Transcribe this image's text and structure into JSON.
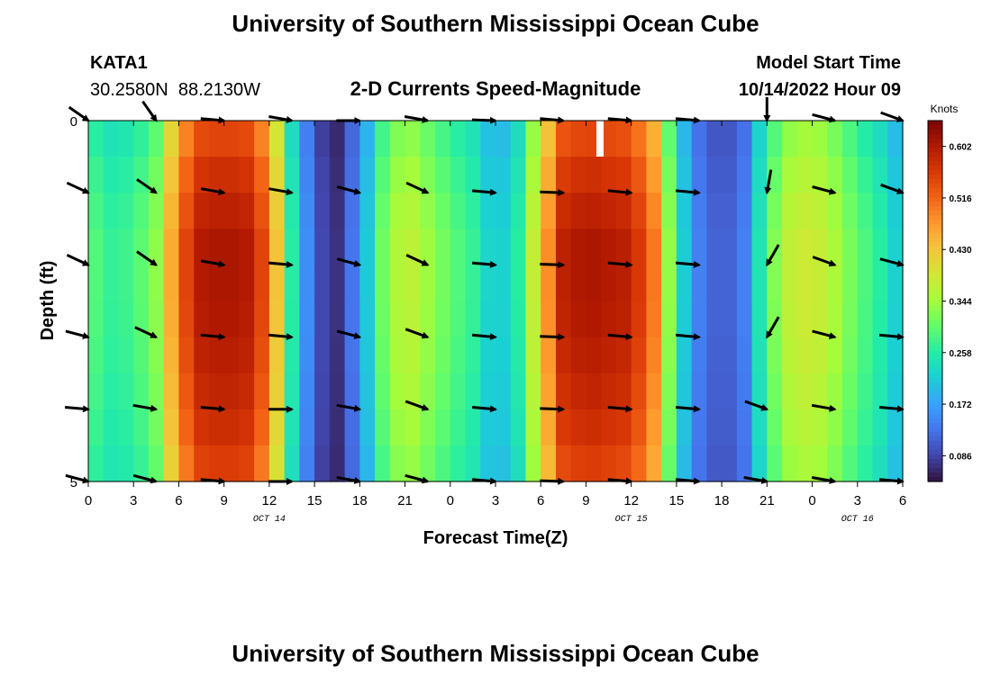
{
  "page": {
    "title": "University of Southern Mississippi Ocean Cube",
    "station_id": "KATA1",
    "coordinates": "30.2580N  88.2130W",
    "subtitle": "2-D Currents Speed-Magnitude",
    "model_start_label": "Model Start Time",
    "model_start_value": "10/14/2022 Hour 09",
    "footer_title": "University of Southern Mississippi Ocean Cube"
  },
  "chart_data": {
    "type": "heatmap",
    "title": "2-D Currents Speed-Magnitude",
    "xlabel": "Forecast Time(Z)",
    "ylabel": "Depth (ft)",
    "x_range_hours": [
      0,
      54
    ],
    "y_range_ft": [
      0,
      5
    ],
    "x_ticks": [
      "0",
      "3",
      "6",
      "9",
      "12",
      "15",
      "18",
      "21",
      "0",
      "3",
      "6",
      "9",
      "12",
      "15",
      "18",
      "21",
      "0",
      "3",
      "6"
    ],
    "y_ticks": [
      "0",
      "5"
    ],
    "date_labels": [
      {
        "hour": 12,
        "label": "OCT 14"
      },
      {
        "hour": 36,
        "label": "OCT 15"
      },
      {
        "hour": 51,
        "label": "OCT 16"
      }
    ],
    "colorbar": {
      "label": "Knots",
      "min": 0.043,
      "max": 0.645,
      "ticks": [
        "0.602",
        "0.516",
        "0.430",
        "0.344",
        "0.258",
        "0.172",
        "0.086"
      ],
      "tick_values": [
        0.602,
        0.516,
        0.43,
        0.344,
        0.258,
        0.172,
        0.086
      ],
      "colors": [
        "#30123b",
        "#4145ab",
        "#4675ed",
        "#39a2fc",
        "#1bcfd4",
        "#24eca6",
        "#61fc6c",
        "#a4fc3b",
        "#d1e834",
        "#f3c63a",
        "#fe9b2d",
        "#f36315",
        "#d93806",
        "#b11901",
        "#7a0403"
      ]
    },
    "speed_profile": {
      "hours": [
        0,
        1.5,
        3,
        4.5,
        6,
        7.5,
        9,
        10.5,
        12,
        13.5,
        15,
        16.5,
        18,
        19.5,
        21,
        22.5,
        24,
        25.5,
        27,
        28.5,
        30,
        31.5,
        33,
        34.5,
        36,
        37.5,
        39,
        40.5,
        42,
        43.5,
        45,
        46.5,
        48,
        49.5,
        51,
        52.5,
        54
      ],
      "knots": [
        0.3,
        0.27,
        0.28,
        0.33,
        0.52,
        0.6,
        0.61,
        0.6,
        0.52,
        0.26,
        0.1,
        0.07,
        0.16,
        0.31,
        0.38,
        0.34,
        0.3,
        0.27,
        0.2,
        0.26,
        0.43,
        0.59,
        0.61,
        0.6,
        0.59,
        0.5,
        0.25,
        0.14,
        0.1,
        0.14,
        0.3,
        0.37,
        0.39,
        0.35,
        0.3,
        0.26,
        0.2
      ],
      "depth_factor": [
        0.88,
        0.95,
        1.0,
        1.0,
        0.98,
        0.95,
        0.9
      ]
    },
    "vectors": {
      "hours": [
        0,
        4.5,
        9,
        13.5,
        18,
        22.5,
        27,
        31.5,
        36,
        40.5,
        45,
        49.5,
        54
      ],
      "depths_ft": [
        0,
        1,
        2,
        3,
        4,
        5
      ],
      "direction_deg": [
        [
          -145,
          -125,
          -175,
          -170,
          -180,
          -170,
          -178,
          -175,
          -175,
          -175,
          -90,
          -165,
          -160
        ],
        [
          -155,
          -145,
          -170,
          -170,
          -165,
          -155,
          -175,
          -178,
          -175,
          -175,
          -80,
          -165,
          -160
        ],
        [
          -155,
          -145,
          -170,
          -175,
          -165,
          -155,
          -175,
          -178,
          -175,
          -175,
          -60,
          -160,
          -165
        ],
        [
          -165,
          -155,
          -175,
          -175,
          -165,
          -160,
          -175,
          -178,
          -175,
          -175,
          -60,
          -165,
          -175
        ],
        [
          -175,
          -170,
          -175,
          -180,
          -170,
          -160,
          -175,
          -178,
          -175,
          -175,
          -160,
          -170,
          -175
        ],
        [
          -165,
          -165,
          -175,
          -180,
          -170,
          -165,
          -175,
          -178,
          -175,
          -175,
          -170,
          -170,
          -175
        ]
      ]
    }
  }
}
